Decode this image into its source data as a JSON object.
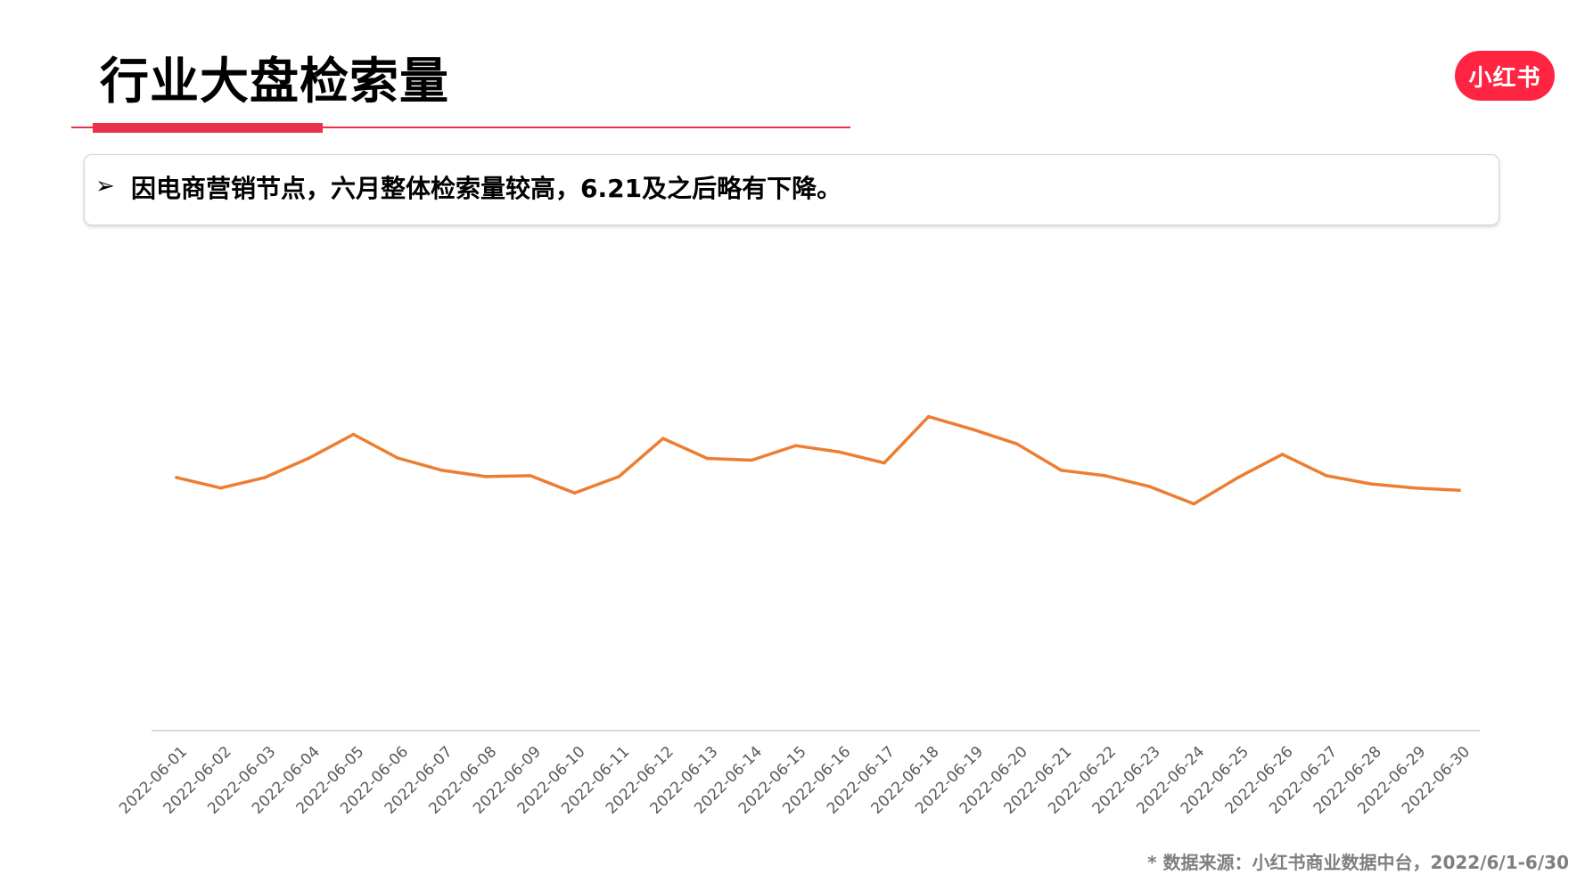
{
  "header": {
    "title": "行业大盘检索量"
  },
  "logo": {
    "text": "小红书",
    "color": "#ff2442"
  },
  "insight": {
    "bullet": "➢",
    "text": "因电商营销节点，六月整体检索量较高，6.21及之后略有下降。"
  },
  "footer": {
    "source": "* 数据来源：小红书商业数据中台，2022/6/1-6/30"
  },
  "colors": {
    "accent": "#e8334a",
    "line": "#ed7d31",
    "axis": "#d9d9d9",
    "tick_label": "#595959"
  },
  "chart_data": {
    "type": "line",
    "title": "",
    "xlabel": "",
    "ylabel": "",
    "ylim": [
      0,
      100
    ],
    "y_axis_visible": false,
    "grid": false,
    "legend": "none",
    "categories": [
      "2022-06-01",
      "2022-06-02",
      "2022-06-03",
      "2022-06-04",
      "2022-06-05",
      "2022-06-06",
      "2022-06-07",
      "2022-06-08",
      "2022-06-09",
      "2022-06-10",
      "2022-06-11",
      "2022-06-12",
      "2022-06-13",
      "2022-06-14",
      "2022-06-15",
      "2022-06-16",
      "2022-06-17",
      "2022-06-18",
      "2022-06-19",
      "2022-06-20",
      "2022-06-21",
      "2022-06-22",
      "2022-06-23",
      "2022-06-24",
      "2022-06-25",
      "2022-06-26",
      "2022-06-27",
      "2022-06-28",
      "2022-06-29",
      "2022-06-30"
    ],
    "series": [
      {
        "values": [
          55.7,
          53.4,
          55.7,
          60.0,
          65.2,
          60.0,
          57.3,
          55.9,
          56.1,
          52.3,
          55.9,
          64.3,
          59.9,
          59.5,
          62.7,
          61.3,
          58.9,
          69.1,
          66.3,
          63.1,
          57.3,
          56.1,
          53.7,
          49.9,
          55.7,
          60.8,
          56.1,
          54.3,
          53.4,
          52.9
        ]
      }
    ]
  }
}
